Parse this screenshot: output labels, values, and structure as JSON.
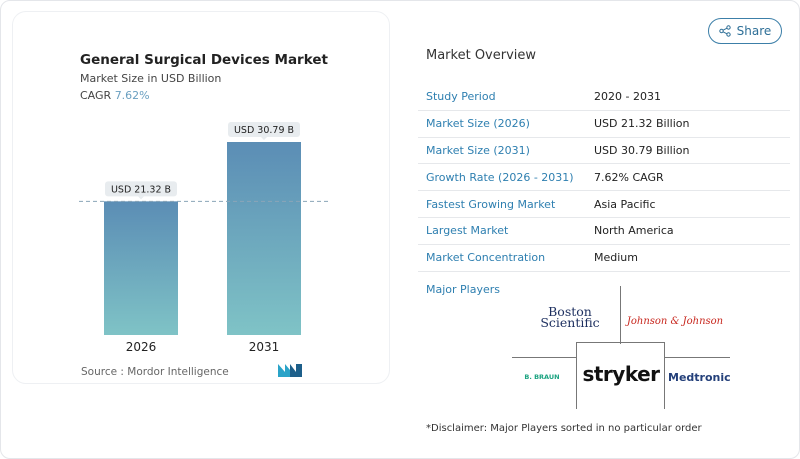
{
  "share_label": "Share",
  "chart_data": {
    "type": "bar",
    "title": "General Surgical Devices Market",
    "subtitle": "Market Size in USD Billion",
    "cagr_label": "CAGR",
    "cagr_value": "7.62%",
    "categories": [
      "2026",
      "2031"
    ],
    "values": [
      21.32,
      30.79
    ],
    "data_labels": [
      "USD 21.32 B",
      "USD 30.79 B"
    ],
    "ylim": [
      0,
      30.79
    ],
    "reference_line": 21.32,
    "grid": false,
    "colors": {
      "bar_top": "#5b8db5",
      "bar_bottom": "#7fc3c6"
    },
    "source": "Source :  Mordor Intelligence"
  },
  "overview": {
    "title": "Market Overview",
    "rows": [
      {
        "label": "Study Period",
        "value": "2020 - 2031"
      },
      {
        "label": "Market Size (2026)",
        "value": "USD 21.32 Billion"
      },
      {
        "label": "Market Size (2031)",
        "value": "USD 30.79 Billion"
      },
      {
        "label": "Growth Rate (2026 - 2031)",
        "value": "7.62% CAGR"
      },
      {
        "label": "Fastest Growing Market",
        "value": "Asia Pacific"
      },
      {
        "label": "Largest Market",
        "value": "North America"
      },
      {
        "label": "Market Concentration",
        "value": "Medium"
      }
    ]
  },
  "major_players": {
    "title": "Major Players",
    "logos": [
      "Boston Scientific",
      "Johnson & Johnson",
      "B. BRAUN",
      "stryker",
      "Medtronic"
    ],
    "disclaimer": "*Disclaimer: Major Players sorted in no particular order"
  }
}
